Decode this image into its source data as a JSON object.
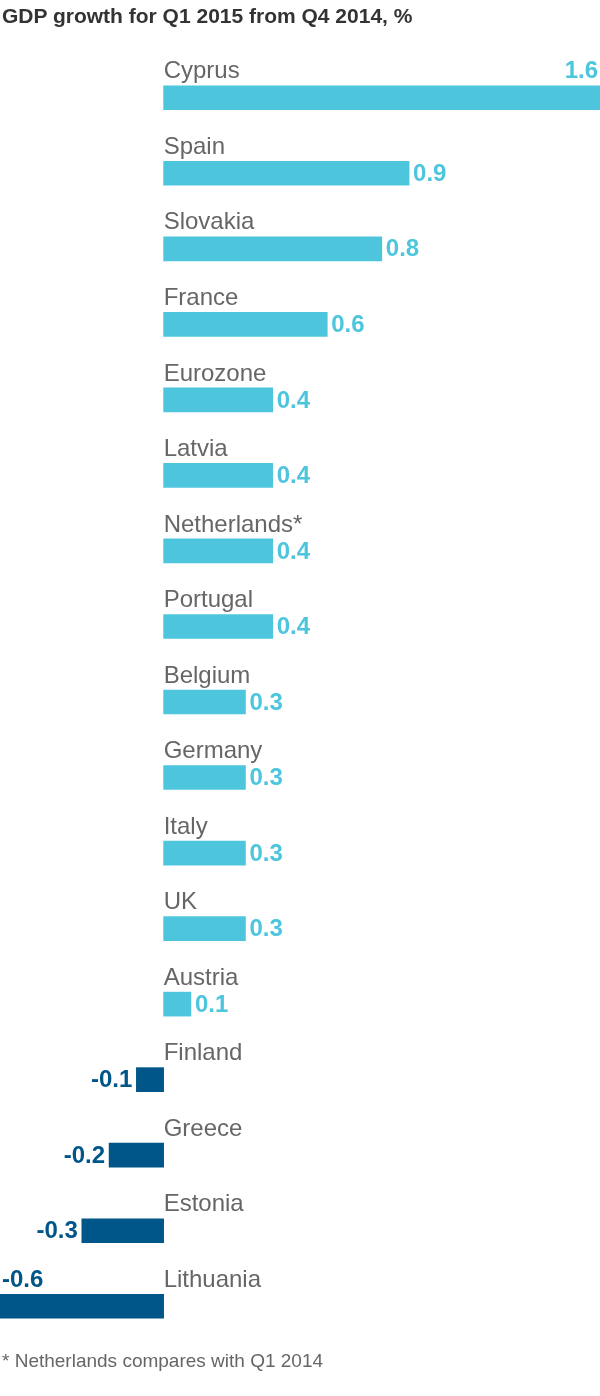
{
  "chart_data": {
    "type": "bar",
    "title": "GDP growth for Q1 2015 from Q4 2014, %",
    "orientation": "horizontal",
    "categories": [
      "Cyprus",
      "Spain",
      "Slovakia",
      "France",
      "Eurozone",
      "Latvia",
      "Netherlands*",
      "Portugal",
      "Belgium",
      "Germany",
      "Italy",
      "UK",
      "Austria",
      "Finland",
      "Greece",
      "Estonia",
      "Lithuania"
    ],
    "values": [
      1.6,
      0.9,
      0.8,
      0.6,
      0.4,
      0.4,
      0.4,
      0.4,
      0.3,
      0.3,
      0.3,
      0.3,
      0.1,
      -0.1,
      -0.2,
      -0.3,
      -0.6
    ],
    "colors": [
      "#4dc6dd",
      "#4dc6dd",
      "#4dc6dd",
      "#4dc6dd",
      "#4dc6dd",
      "#4dc6dd",
      "#4dc6dd",
      "#4dc6dd",
      "#4dc6dd",
      "#4dc6dd",
      "#4dc6dd",
      "#4dc6dd",
      "#4dc6dd",
      "#005689",
      "#005689",
      "#005689",
      "#005689"
    ],
    "xlim": [
      -0.6,
      1.6
    ],
    "data_labels": true,
    "grid": false,
    "legend": false,
    "tick_labels": false,
    "annotations": [
      "* Netherlands compares with Q1 2014"
    ]
  }
}
